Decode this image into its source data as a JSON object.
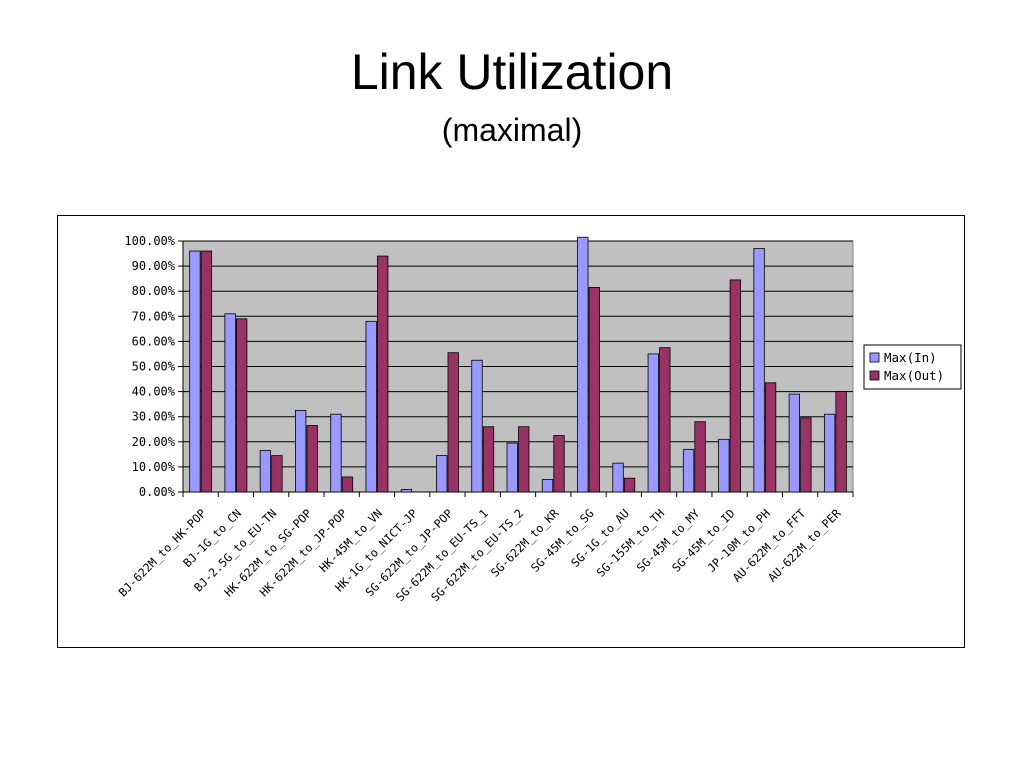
{
  "slide": {
    "title": "Link Utilization",
    "subtitle": "(maximal)"
  },
  "chart_data": {
    "type": "bar",
    "categories": [
      "BJ-622M_to_HK-POP",
      "BJ-1G_to_CN",
      "BJ-2.5G_to_EU-TN",
      "HK-622M_to_SG-POP",
      "HK-622M_to_JP-POP",
      "HK-45M_to_VN",
      "HK-1G_to_NICT-JP",
      "SG-622M_to_JP-POP",
      "SG-622M_to_EU-TS_1",
      "SG-622M_to_EU-TS_2",
      "SG-622M_to_KR",
      "SG-45M_to_SG",
      "SG-1G_to_AU",
      "SG-155M_to_TH",
      "SG-45M_to_MY",
      "SG-45M_to_ID",
      "JP-10M_to_PH",
      "AU-622M_to_FFT",
      "AU-622M_to_PER"
    ],
    "series": [
      {
        "name": "Max(In)",
        "color": "#9999ff",
        "values": [
          96,
          71,
          16.5,
          32.5,
          31,
          68,
          1,
          14.5,
          52.5,
          19.5,
          5,
          101.5,
          11.5,
          55,
          17,
          21,
          97,
          39,
          31
        ]
      },
      {
        "name": "Max(Out)",
        "color": "#993366",
        "values": [
          96,
          69,
          14.5,
          26.5,
          6,
          94,
          0,
          55.5,
          26,
          26,
          22.5,
          81.5,
          5.5,
          57.5,
          28,
          84.5,
          43.5,
          29.5,
          40
        ]
      }
    ],
    "yticks": [
      "100.00%",
      "90.00%",
      "80.00%",
      "70.00%",
      "60.00%",
      "50.00%",
      "40.00%",
      "30.00%",
      "20.00%",
      "10.00%",
      "0.00%"
    ],
    "ylim": [
      0,
      100
    ],
    "grid": true,
    "legend_position": "right",
    "plot_background": "#c0c0c0"
  }
}
